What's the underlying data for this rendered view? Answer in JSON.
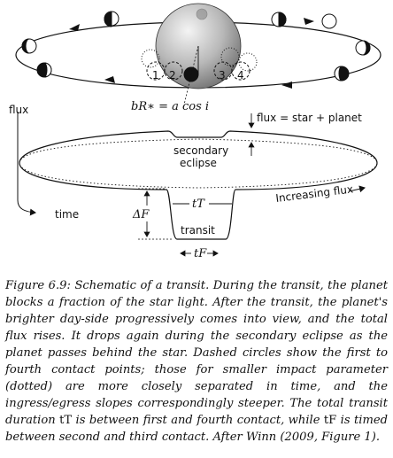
{
  "diagram": {
    "contact_labels": [
      "1",
      "2",
      "3",
      "4"
    ],
    "impact_relation": "bR∗ = a cos i",
    "flux_axis_label": "flux",
    "time_axis_label": "time",
    "flux_star_planet_label": "flux = star + planet",
    "secondary_eclipse_label_line1": "secondary",
    "secondary_eclipse_label_line2": "eclipse",
    "increasing_flux_label": "Increasing flux",
    "transit_label": "transit",
    "transit_duration_label": "tT",
    "full_duration_label": "tF",
    "depth_label": "ΔF"
  },
  "caption": {
    "label": "Figure 6.9:",
    "text_a": "Schematic of a transit. During the transit, the planet blocks a fraction of the star light. After the transit, the planet's brighter day-side progressively comes into view, and the total flux rises. It drops again during the secondary eclipse as the planet passes behind the star. Dashed circles show the first to fourth contact points; those for smaller impact parameter (dotted) are more closely separated in time, and the ingress/egress slopes correspondingly steeper. The total transit duration ",
    "sym_tT": "tT",
    "text_b": " is between first and fourth contact, while ",
    "sym_tF": "tF",
    "text_c": " is timed between second and third contact. After Winn (2009, Figure 1)."
  }
}
